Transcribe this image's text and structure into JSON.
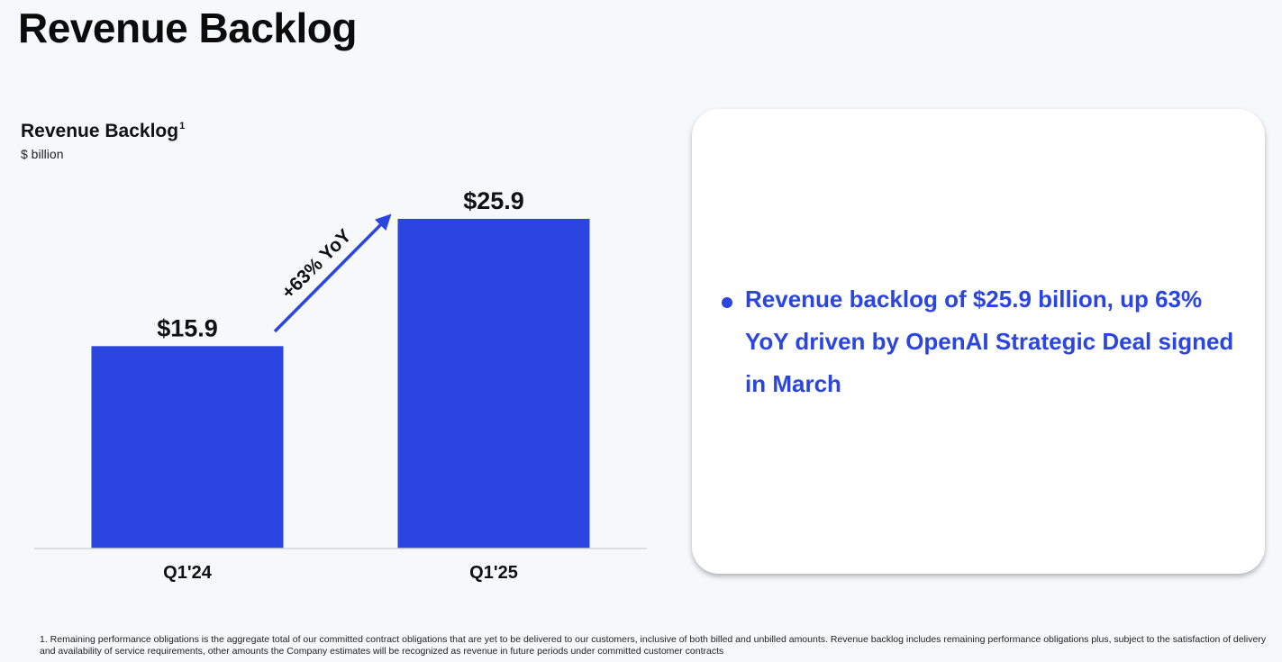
{
  "page": {
    "title": "Revenue Backlog"
  },
  "chart_data": {
    "type": "bar",
    "title": "Revenue Backlog",
    "title_footnote_marker": "1",
    "unit_label": "$ billion",
    "categories": [
      "Q1'24",
      "Q1'25"
    ],
    "values": [
      15.9,
      25.9
    ],
    "value_labels": [
      "$15.9",
      "$25.9"
    ],
    "ylim": [
      0,
      25.9
    ],
    "bar_color": "#2b45e0",
    "axis_color": "#d4d4d4",
    "grid": false,
    "annotation": {
      "text": "+63% YoY",
      "from_category": "Q1'24",
      "to_category": "Q1'25",
      "color": "#2b45e0"
    }
  },
  "callout": {
    "text": "Revenue backlog of $25.9 billion, up 63% YoY driven by OpenAI Strategic Deal signed in March",
    "color": "#2b45e0"
  },
  "footnote": {
    "text": "1. Remaining performance obligations is the aggregate total of our committed contract obligations that are yet to be delivered to our customers, inclusive of both billed and unbilled amounts. Revenue backlog includes remaining performance obligations plus, subject to the satisfaction of delivery and availability of service requirements, other amounts the Company estimates will be recognized as revenue in future periods under committed customer contracts"
  }
}
